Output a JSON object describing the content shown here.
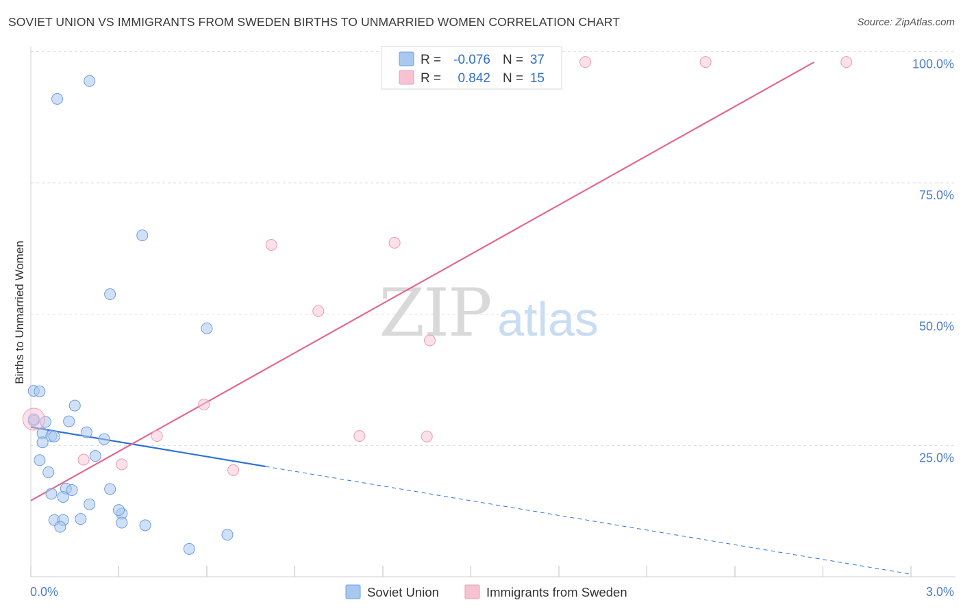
{
  "title": "SOVIET UNION VS IMMIGRANTS FROM SWEDEN BIRTHS TO UNMARRIED WOMEN CORRELATION CHART",
  "source": "Source: ZipAtlas.com",
  "watermark": {
    "zip": "ZIP",
    "atlas": "atlas"
  },
  "colors": {
    "blue_fill": "#a9c8f0",
    "blue_stroke": "#6d9de0",
    "blue_line": "#2f72cf",
    "pink_fill": "#f7c3d3",
    "pink_stroke": "#ec9ab4",
    "pink_line": "#e2688f",
    "grid": "#dcdcdc",
    "axis_tick_label": "#4a7cc8"
  },
  "legend": {
    "rows": [
      {
        "r_label": "R =",
        "r_value": "-0.076",
        "n_label": "N =",
        "n_value": "37",
        "series": "blue"
      },
      {
        "r_label": "R =",
        "r_value": "0.842",
        "n_label": "N =",
        "n_value": "15",
        "series": "pink"
      }
    ]
  },
  "chart_data": {
    "type": "scatter",
    "title": "SOVIET UNION VS IMMIGRANTS FROM SWEDEN BIRTHS TO UNMARRIED WOMEN CORRELATION CHART",
    "xlabel": "",
    "ylabel": "Births to Unmarried Women",
    "xlim": [
      0.0,
      3.0
    ],
    "ylim": [
      0.0,
      102.0
    ],
    "x_tick_labels": [
      {
        "value": 0.0,
        "label": "0.0%"
      },
      {
        "value": 3.0,
        "label": "3.0%"
      }
    ],
    "y_tick_labels": [
      {
        "value": 25,
        "label": "25.0%"
      },
      {
        "value": 50,
        "label": "50.0%"
      },
      {
        "value": 75,
        "label": "75.0%"
      },
      {
        "value": 100,
        "label": "100.0%"
      }
    ],
    "y_gridlines": [
      25,
      50,
      75,
      100
    ],
    "series": [
      {
        "name": "Soviet Union",
        "color": "blue",
        "points": [
          [
            0.01,
            35.4
          ],
          [
            0.03,
            35.3
          ],
          [
            0.01,
            29.7
          ],
          [
            0.05,
            29.5
          ],
          [
            0.04,
            27.3
          ],
          [
            0.07,
            26.8
          ],
          [
            0.08,
            26.7
          ],
          [
            0.04,
            25.6
          ],
          [
            0.03,
            22.2
          ],
          [
            0.15,
            32.6
          ],
          [
            0.13,
            29.6
          ],
          [
            0.19,
            27.5
          ],
          [
            0.25,
            26.2
          ],
          [
            0.22,
            23.0
          ],
          [
            0.06,
            19.9
          ],
          [
            0.07,
            15.8
          ],
          [
            0.12,
            16.8
          ],
          [
            0.14,
            16.5
          ],
          [
            0.11,
            15.2
          ],
          [
            0.27,
            16.7
          ],
          [
            0.2,
            13.8
          ],
          [
            0.08,
            10.8
          ],
          [
            0.11,
            10.8
          ],
          [
            0.1,
            9.5
          ],
          [
            0.17,
            11.0
          ],
          [
            0.31,
            12.0
          ],
          [
            0.3,
            12.7
          ],
          [
            0.31,
            10.3
          ],
          [
            0.39,
            9.8
          ],
          [
            0.54,
            5.3
          ],
          [
            0.67,
            8.0
          ],
          [
            0.38,
            65.0
          ],
          [
            0.27,
            53.8
          ],
          [
            0.6,
            47.3
          ],
          [
            0.09,
            91.0
          ],
          [
            0.2,
            94.4
          ],
          [
            0.01,
            30.0
          ]
        ]
      },
      {
        "name": "Immigrants from Sweden",
        "color": "pink",
        "points": [
          [
            0.01,
            30.0
          ],
          [
            0.18,
            22.3
          ],
          [
            0.31,
            21.4
          ],
          [
            0.43,
            26.8
          ],
          [
            0.59,
            32.8
          ],
          [
            0.69,
            20.3
          ],
          [
            0.82,
            63.2
          ],
          [
            0.98,
            50.6
          ],
          [
            1.12,
            26.8
          ],
          [
            1.24,
            63.6
          ],
          [
            1.36,
            45.0
          ],
          [
            1.35,
            26.7
          ],
          [
            1.89,
            98.0
          ],
          [
            2.3,
            98.0
          ],
          [
            2.78,
            98.0
          ]
        ]
      }
    ],
    "trendlines": [
      {
        "series": "Soviet Union",
        "x": [
          0.0,
          0.8
        ],
        "y": [
          28.5,
          21.0
        ],
        "style": "solid"
      },
      {
        "series": "Soviet Union",
        "x": [
          0.8,
          3.0
        ],
        "y": [
          21.0,
          0.5
        ],
        "style": "dashed"
      },
      {
        "series": "Immigrants from Sweden",
        "x": [
          0.0,
          2.67
        ],
        "y": [
          14.5,
          98.0
        ],
        "style": "solid"
      }
    ]
  },
  "bottom_legend": {
    "items": [
      {
        "label": "Soviet Union",
        "color": "blue"
      },
      {
        "label": "Immigrants from Sweden",
        "color": "pink"
      }
    ]
  }
}
